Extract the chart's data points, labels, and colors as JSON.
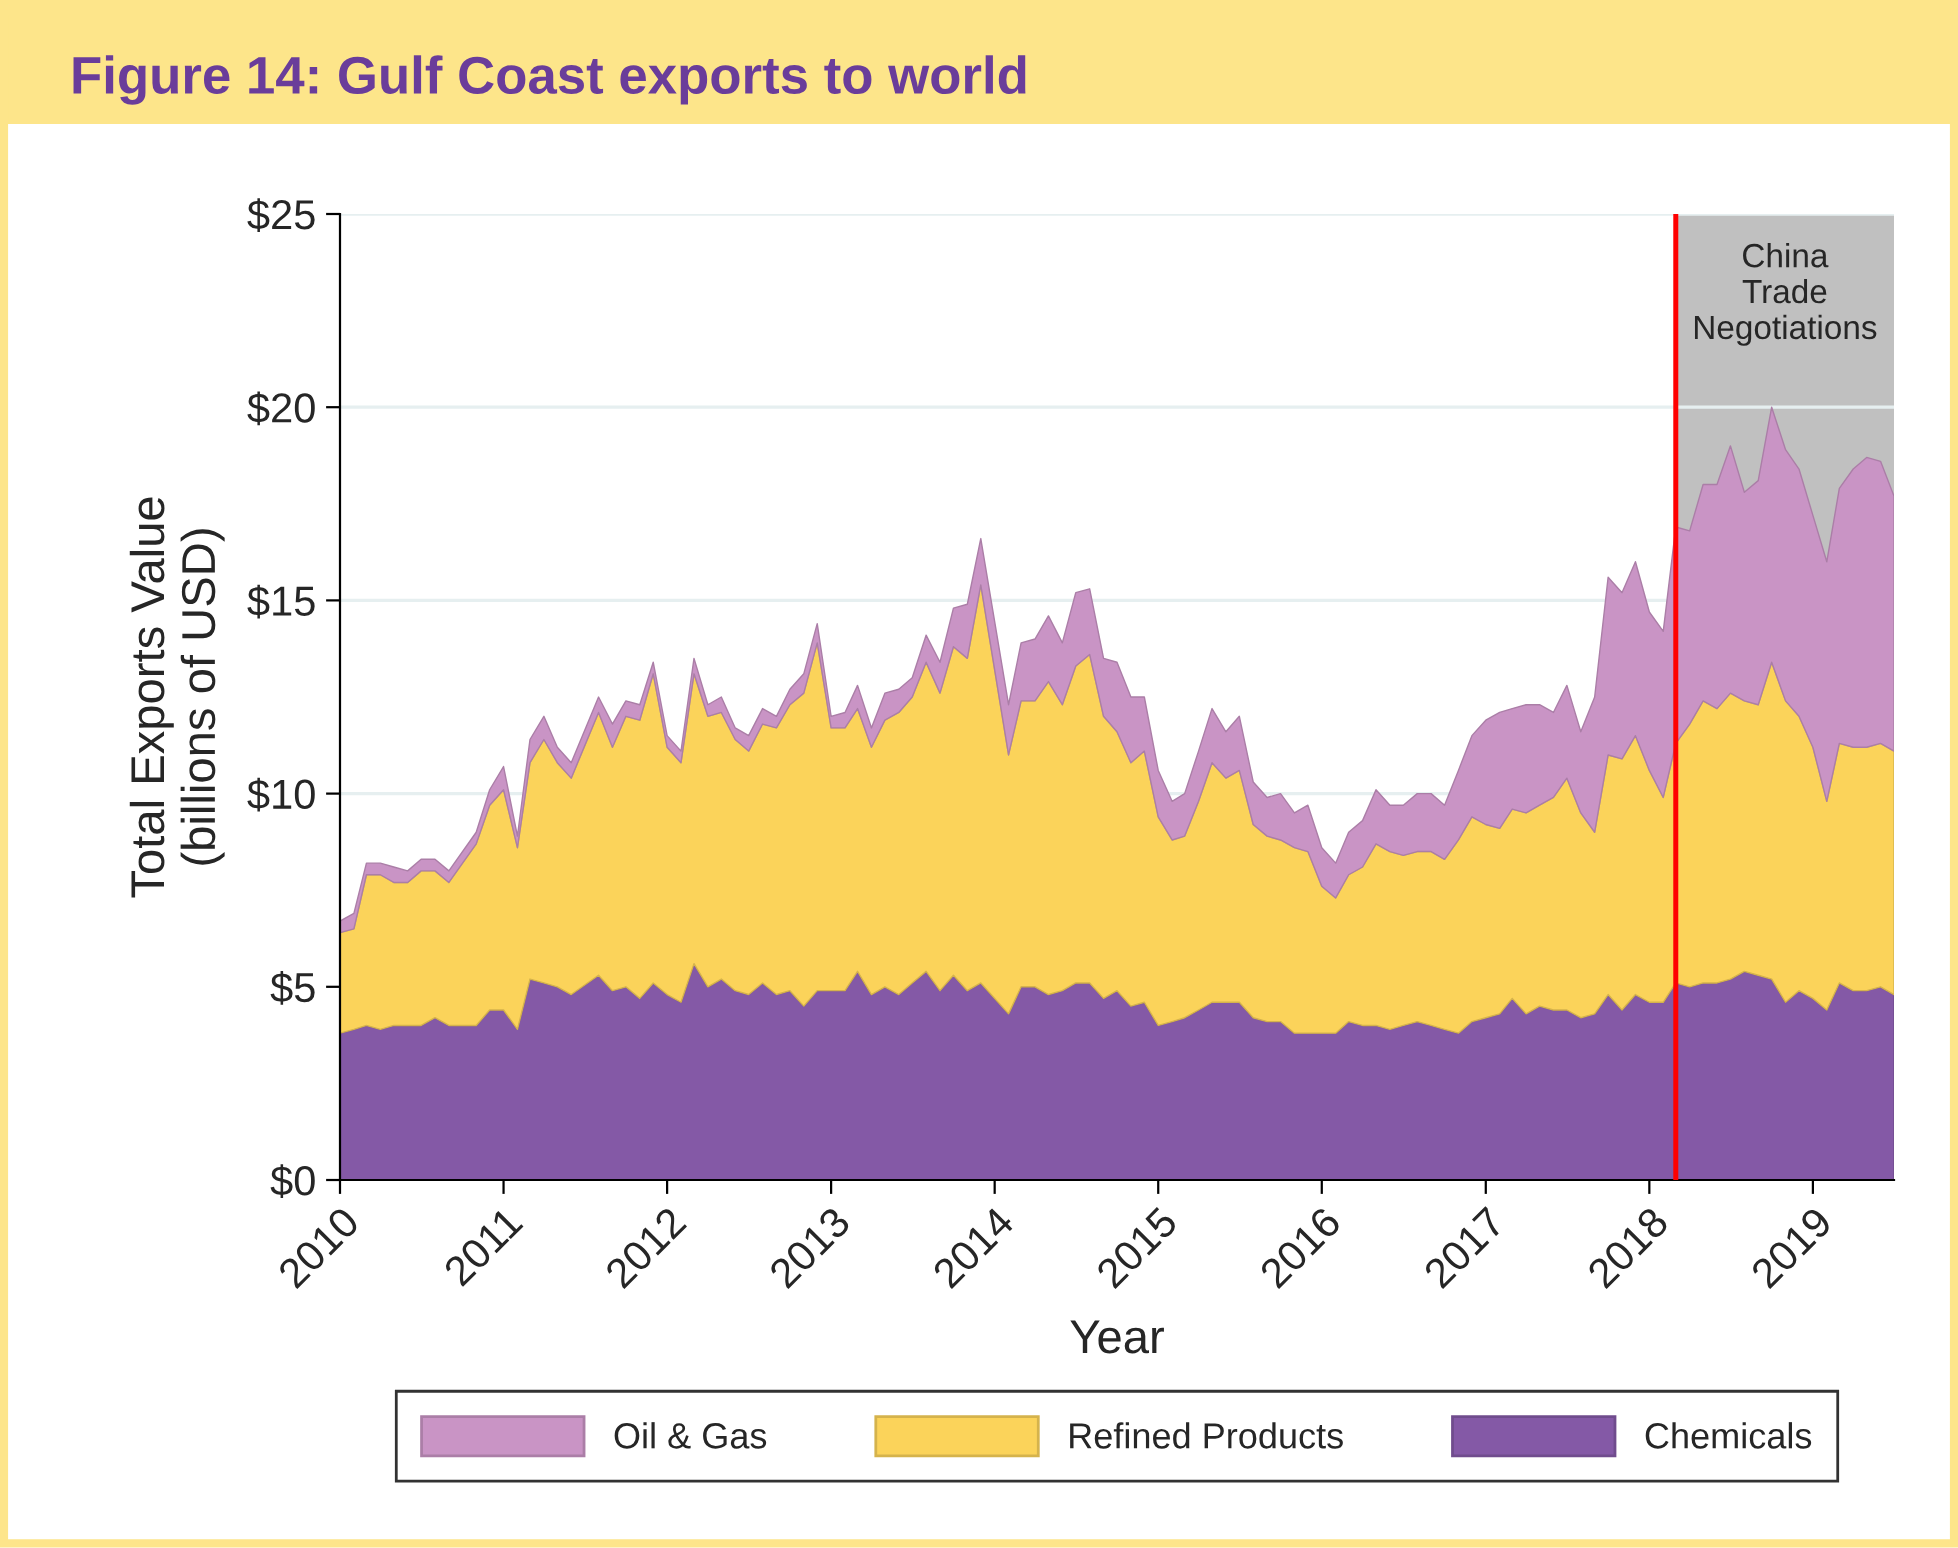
{
  "chart_data": {
    "type": "area",
    "stacked": true,
    "title": "Figure 14: Gulf Coast exports to world",
    "xlabel": "Year",
    "ylabel": "Total Exports Value\n(billions of USD)",
    "x": [
      "2010-01",
      "2010-02",
      "2010-03",
      "2010-04",
      "2010-05",
      "2010-06",
      "2010-07",
      "2010-08",
      "2010-09",
      "2010-11",
      "2010-12",
      "2011-01",
      "2011-02",
      "2011-03",
      "2011-04",
      "2011-05",
      "2011-06",
      "2011-08",
      "2011-09",
      "2011-10",
      "2011-11",
      "2011-12",
      "2012-01",
      "2012-02",
      "2012-03",
      "2012-04",
      "2012-05",
      "2012-06",
      "2012-07",
      "2012-08",
      "2012-09",
      "2012-10",
      "2012-11",
      "2012-12",
      "2013-01",
      "2013-02",
      "2013-03",
      "2013-04",
      "2013-05",
      "2013-06",
      "2013-07",
      "2013-08",
      "2013-09",
      "2013-10",
      "2013-11",
      "2013-12",
      "2014-02",
      "2014-03",
      "2014-04",
      "2014-05",
      "2014-06",
      "2014-07",
      "2014-08",
      "2014-09",
      "2014-10",
      "2014-11",
      "2014-12",
      "2015-01",
      "2015-02",
      "2015-03",
      "2015-04",
      "2015-05",
      "2015-06",
      "2015-07",
      "2015-08",
      "2015-09",
      "2015-10",
      "2015-11",
      "2015-12",
      "2016-01",
      "2016-02",
      "2016-03",
      "2016-04",
      "2016-05",
      "2016-06",
      "2016-07",
      "2016-08",
      "2016-09",
      "2016-10",
      "2016-11",
      "2016-12",
      "2017-01",
      "2017-02",
      "2017-03",
      "2017-04",
      "2017-05",
      "2017-06",
      "2017-07",
      "2017-08",
      "2017-09",
      "2017-10",
      "2017-11",
      "2017-12",
      "2018-01",
      "2018-02",
      "2018-03",
      "2018-04",
      "2018-05",
      "2018-06",
      "2018-07",
      "2018-08",
      "2018-09",
      "2018-10",
      "2018-11",
      "2018-12",
      "2019-01",
      "2019-02",
      "2019-03",
      "2019-04",
      "2019-05",
      "2019-06",
      "2019-07"
    ],
    "series": [
      {
        "name": "Chemicals",
        "color": "#8459a6",
        "values": [
          3.8,
          3.9,
          4.0,
          3.9,
          4.0,
          4.0,
          4.0,
          4.2,
          4.0,
          4.0,
          4.4,
          4.4,
          3.9,
          5.2,
          5.1,
          5.0,
          4.8,
          5.3,
          4.9,
          5.0,
          4.7,
          5.1,
          4.8,
          4.6,
          5.6,
          5.0,
          5.2,
          4.9,
          4.8,
          5.1,
          4.8,
          4.9,
          4.5,
          4.9,
          4.9,
          4.9,
          5.4,
          4.8,
          5.0,
          4.8,
          5.1,
          5.4,
          4.9,
          5.3,
          4.9,
          5.1,
          4.3,
          5.0,
          5.0,
          4.8,
          4.9,
          5.1,
          5.1,
          4.7,
          4.9,
          4.5,
          4.6,
          4.0,
          4.1,
          4.2,
          4.4,
          4.6,
          4.6,
          4.6,
          4.2,
          4.1,
          4.1,
          3.8,
          3.8,
          3.8,
          3.8,
          4.1,
          4.0,
          4.0,
          3.9,
          4.0,
          4.1,
          4.0,
          3.9,
          3.8,
          4.1,
          4.2,
          4.3,
          4.7,
          4.3,
          4.5,
          4.4,
          4.4,
          4.2,
          4.3,
          4.8,
          4.4,
          4.8,
          4.6,
          4.6,
          5.1,
          5.0,
          5.1,
          5.1,
          5.2,
          5.4,
          5.3,
          5.2,
          4.6,
          4.9,
          4.7,
          4.4,
          5.1,
          4.9,
          4.9,
          5.0,
          4.8
        ]
      },
      {
        "name": "Refined Products",
        "color": "#fbd35a",
        "values": [
          2.6,
          2.6,
          3.9,
          4.0,
          3.7,
          3.7,
          4.0,
          3.8,
          3.7,
          4.7,
          5.3,
          5.7,
          4.7,
          5.6,
          6.3,
          5.8,
          5.6,
          6.8,
          6.3,
          7.0,
          7.2,
          8.0,
          6.4,
          6.2,
          7.5,
          7.0,
          6.9,
          6.5,
          6.3,
          6.7,
          6.9,
          7.4,
          8.1,
          9.0,
          6.8,
          6.8,
          6.8,
          6.4,
          6.9,
          7.3,
          7.4,
          8.0,
          7.7,
          8.5,
          8.6,
          10.3,
          6.7,
          7.4,
          7.4,
          8.1,
          7.4,
          8.2,
          8.5,
          7.3,
          6.7,
          6.3,
          6.5,
          5.4,
          4.7,
          4.7,
          5.4,
          6.2,
          5.8,
          6.0,
          5.0,
          4.8,
          4.7,
          4.8,
          4.7,
          3.8,
          3.5,
          3.8,
          4.1,
          4.7,
          4.6,
          4.4,
          4.4,
          4.5,
          4.4,
          5.0,
          5.3,
          5.0,
          4.8,
          4.9,
          5.2,
          5.2,
          5.5,
          6.0,
          5.3,
          4.7,
          6.2,
          6.5,
          6.7,
          6.0,
          5.3,
          6.2,
          6.8,
          7.3,
          7.1,
          7.4,
          7.0,
          7.0,
          8.2,
          7.8,
          7.1,
          6.5,
          5.4,
          6.2,
          6.3,
          6.3,
          6.3,
          6.3
        ]
      },
      {
        "name": "Oil & Gas",
        "color": "#c994c5",
        "values": [
          0.3,
          0.4,
          0.3,
          0.3,
          0.4,
          0.3,
          0.3,
          0.3,
          0.3,
          0.3,
          0.4,
          0.6,
          0.3,
          0.6,
          0.6,
          0.4,
          0.4,
          0.4,
          0.6,
          0.4,
          0.4,
          0.3,
          0.3,
          0.3,
          0.4,
          0.3,
          0.4,
          0.3,
          0.4,
          0.4,
          0.3,
          0.4,
          0.5,
          0.5,
          0.3,
          0.4,
          0.6,
          0.5,
          0.7,
          0.6,
          0.5,
          0.7,
          0.8,
          1.0,
          1.4,
          1.2,
          1.3,
          1.5,
          1.6,
          1.7,
          1.6,
          1.9,
          1.7,
          1.5,
          1.8,
          1.7,
          1.4,
          1.2,
          1.0,
          1.1,
          1.3,
          1.4,
          1.2,
          1.4,
          1.1,
          1.0,
          1.2,
          0.9,
          1.2,
          1.0,
          0.9,
          1.1,
          1.2,
          1.4,
          1.2,
          1.3,
          1.5,
          1.5,
          1.4,
          1.8,
          2.1,
          2.7,
          3.0,
          2.6,
          2.8,
          2.6,
          2.2,
          2.4,
          2.1,
          3.5,
          4.6,
          4.3,
          4.5,
          4.1,
          4.3,
          5.6,
          5.0,
          5.6,
          5.8,
          6.4,
          5.4,
          5.8,
          6.6,
          6.5,
          6.4,
          6.0,
          6.2,
          6.6,
          7.2,
          7.5,
          7.3,
          6.6
        ]
      }
    ],
    "xlim": [
      "2010-01",
      "2019-07"
    ],
    "xticks": [
      "2010",
      "2011",
      "2012",
      "2013",
      "2014",
      "2015",
      "2016",
      "2017",
      "2018",
      "2019"
    ],
    "ylim": [
      0,
      25
    ],
    "yticks": [
      {
        "value": 0,
        "label": "$0"
      },
      {
        "value": 5,
        "label": "$5"
      },
      {
        "value": 10,
        "label": "$10"
      },
      {
        "value": 15,
        "label": "$15"
      },
      {
        "value": 20,
        "label": "$20"
      },
      {
        "value": 25,
        "label": "$25"
      }
    ],
    "ref_lines": [
      {
        "axis": "x",
        "value": "2018-03",
        "color": "#ff0000"
      }
    ],
    "bands": [
      {
        "axis": "x",
        "from": "2018-03",
        "to": "2019-07",
        "label": "China\nTrade\nNegotiations",
        "color": "#c0c0c0"
      }
    ],
    "grid": "y",
    "legend": "bottom"
  }
}
